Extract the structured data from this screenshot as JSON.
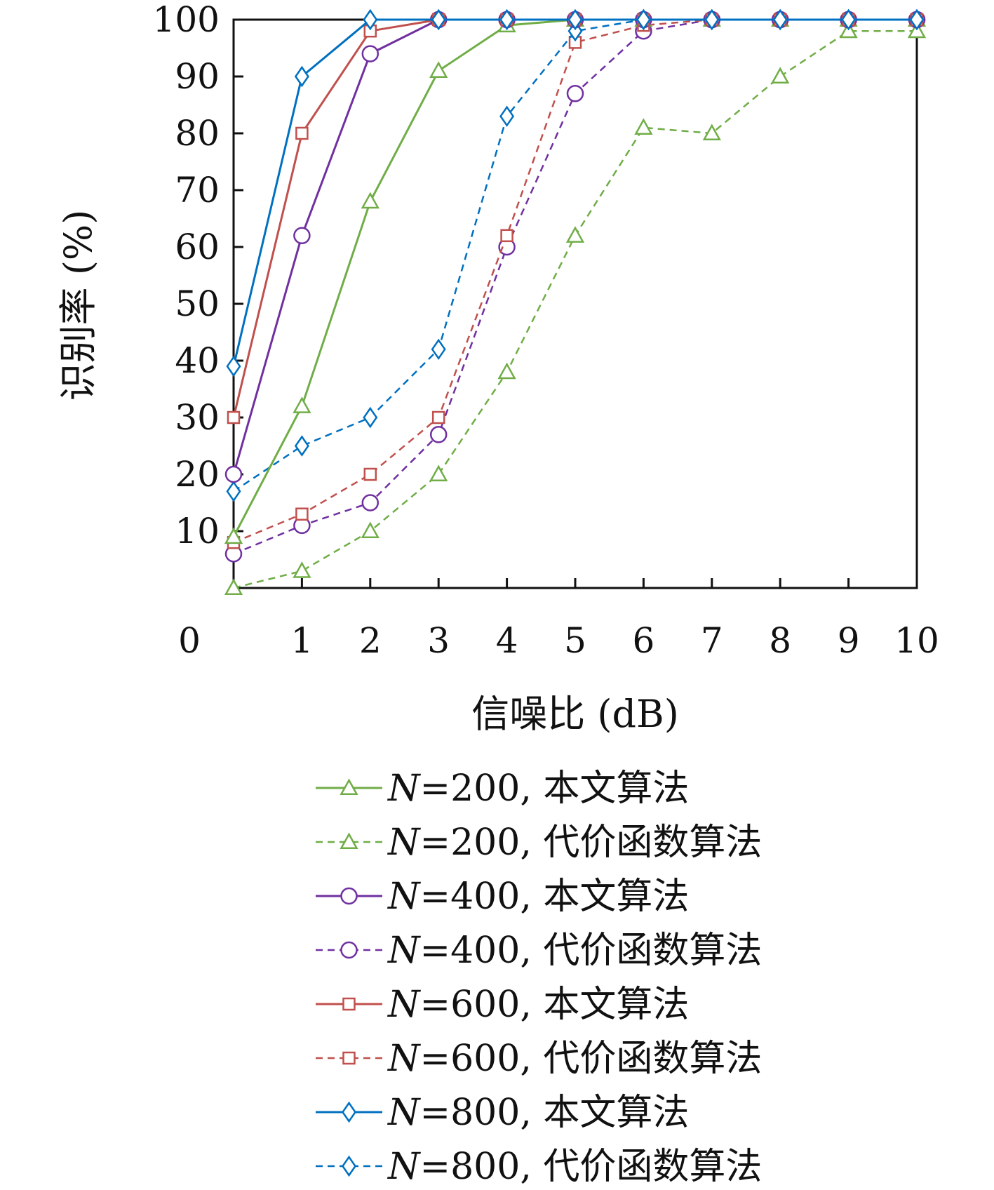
{
  "chart_data": {
    "type": "line",
    "title": "",
    "xlabel": "信噪比 (dB)",
    "ylabel": "识别率 (%)",
    "xlim": [
      0,
      10
    ],
    "ylim": [
      0,
      100
    ],
    "x": [
      0,
      1,
      2,
      3,
      4,
      5,
      6,
      7,
      8,
      9,
      10
    ],
    "x_tick_labels": [
      "0",
      "1",
      "2",
      "3",
      "4",
      "5",
      "6",
      "7",
      "8",
      "9",
      "10"
    ],
    "y_ticks": [
      10,
      20,
      30,
      40,
      50,
      60,
      70,
      80,
      90,
      100
    ],
    "y_tick_labels": [
      "10",
      "20",
      "30",
      "40",
      "50",
      "60",
      "70",
      "80",
      "90",
      "100"
    ],
    "grid": false,
    "legend_position": "bottom",
    "series": [
      {
        "name": "N=200, 本文算法",
        "legend_var": "N",
        "legend_rest": "=200, 本文算法",
        "color": "#70AD47",
        "dash": false,
        "marker": "triangle",
        "values": [
          9,
          32,
          68,
          91,
          99,
          100,
          100,
          100,
          100,
          100,
          100
        ]
      },
      {
        "name": "N=200, 代价函数算法",
        "legend_var": "N",
        "legend_rest": "=200, 代价函数算法",
        "color": "#70AD47",
        "dash": true,
        "marker": "triangle",
        "values": [
          0,
          3,
          10,
          20,
          38,
          62,
          81,
          80,
          90,
          98,
          98
        ]
      },
      {
        "name": "N=400, 本文算法",
        "legend_var": "N",
        "legend_rest": "=400, 本文算法",
        "color": "#7030A0",
        "dash": false,
        "marker": "circle",
        "values": [
          20,
          62,
          94,
          100,
          100,
          100,
          100,
          100,
          100,
          100,
          100
        ]
      },
      {
        "name": "N=400, 代价函数算法",
        "legend_var": "N",
        "legend_rest": "=400, 代价函数算法",
        "color": "#7030A0",
        "dash": true,
        "marker": "circle",
        "values": [
          6,
          11,
          15,
          27,
          60,
          87,
          98,
          100,
          100,
          100,
          100
        ]
      },
      {
        "name": "N=600, 本文算法",
        "legend_var": "N",
        "legend_rest": "=600, 本文算法",
        "color": "#C0504D",
        "dash": false,
        "marker": "square",
        "values": [
          30,
          80,
          98,
          100,
          100,
          100,
          100,
          100,
          100,
          100,
          100
        ]
      },
      {
        "name": "N=600, 代价函数算法",
        "legend_var": "N",
        "legend_rest": "=600, 代价函数算法",
        "color": "#C0504D",
        "dash": true,
        "marker": "square",
        "values": [
          8,
          13,
          20,
          30,
          62,
          96,
          99,
          100,
          100,
          100,
          100
        ]
      },
      {
        "name": "N=800, 本文算法",
        "legend_var": "N",
        "legend_rest": "=800, 本文算法",
        "color": "#0070C0",
        "dash": false,
        "marker": "diamond",
        "values": [
          39,
          90,
          100,
          100,
          100,
          100,
          100,
          100,
          100,
          100,
          100
        ]
      },
      {
        "name": "N=800, 代价函数算法",
        "legend_var": "N",
        "legend_rest": "=800, 代价函数算法",
        "color": "#0070C0",
        "dash": true,
        "marker": "diamond",
        "values": [
          17,
          25,
          30,
          42,
          83,
          98,
          100,
          100,
          100,
          100,
          100
        ]
      }
    ]
  }
}
